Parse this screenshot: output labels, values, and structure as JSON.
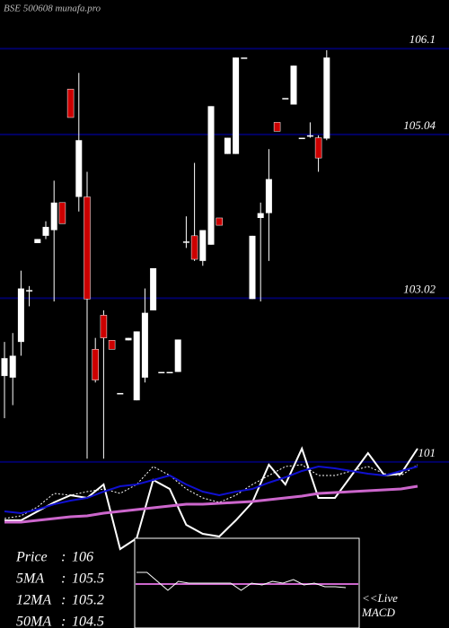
{
  "chart_data": [
    {
      "type": "candlestick",
      "title": "BSE 500608 munafa.pro",
      "ylim": [
        100.5,
        106.7
      ],
      "yticks": [
        106.1,
        105.04,
        103.02,
        101
      ],
      "grid": true,
      "up_color": "#ffffff",
      "down_color": "#cc0000",
      "grid_color": "#000066",
      "open": [
        102.06,
        102.04,
        102.48,
        103.12,
        103.7,
        103.79,
        103.86,
        104.2,
        105.6,
        104.27,
        104.27,
        102.39,
        102.81,
        102.5,
        101.85,
        102.5,
        101.76,
        102.04,
        102.87,
        102.11,
        102.11,
        102.11,
        103.72,
        103.79,
        103.48,
        103.68,
        104.01,
        104.8,
        104.8,
        105.99,
        103.01,
        104.01,
        104.07,
        105.19,
        105.49,
        105.41,
        105.0,
        105.03,
        105.0,
        104.99
      ],
      "high": [
        102.48,
        102.59,
        103.36,
        103.17,
        103.75,
        103.97,
        104.47,
        104.2,
        105.6,
        105.8,
        104.58,
        102.53,
        102.87,
        102.5,
        101.85,
        102.53,
        102.61,
        103.14,
        103.39,
        102.11,
        102.11,
        102.51,
        104.03,
        104.69,
        103.86,
        105.39,
        104.01,
        105.0,
        105.99,
        105.99,
        103.79,
        104.2,
        104.86,
        105.19,
        105.49,
        105.89,
        105.0,
        105.19,
        105.03,
        106.08
      ],
      "low": [
        101.54,
        101.7,
        102.31,
        102.92,
        103.7,
        103.75,
        102.98,
        103.94,
        105.25,
        104.09,
        101.04,
        101.98,
        101.04,
        102.39,
        101.85,
        102.5,
        101.76,
        101.98,
        102.87,
        102.11,
        102.11,
        102.11,
        103.64,
        103.48,
        103.42,
        103.68,
        103.92,
        104.8,
        104.8,
        105.99,
        103.01,
        102.98,
        103.48,
        105.08,
        105.49,
        105.41,
        105.0,
        105.0,
        104.58,
        104.97
      ],
      "close": [
        102.28,
        102.31,
        103.14,
        103.12,
        103.75,
        103.9,
        104.2,
        103.94,
        105.25,
        104.97,
        103.01,
        102.01,
        102.53,
        102.39,
        101.85,
        102.53,
        102.61,
        102.84,
        103.39,
        102.11,
        102.11,
        102.51,
        103.72,
        103.5,
        103.86,
        105.39,
        103.92,
        105.0,
        105.99,
        105.99,
        103.79,
        104.07,
        104.49,
        105.08,
        105.49,
        105.89,
        105.0,
        105.03,
        104.75,
        105.99
      ]
    },
    {
      "type": "line",
      "ylim": [
        0,
        110
      ],
      "separator": ":",
      "x": [
        0,
        2,
        4,
        6,
        8,
        10,
        12,
        14,
        16,
        18,
        20,
        22,
        24,
        26,
        28,
        30,
        32,
        34,
        36,
        38,
        40,
        42,
        44,
        46,
        48,
        50
      ],
      "series": [
        {
          "name": "Price",
          "color": "#ffffff",
          "dash": false,
          "last_value": 106,
          "values": [
            20,
            20,
            30,
            40,
            48,
            45,
            60,
            -12,
            0,
            65,
            55,
            15,
            5,
            2,
            20,
            40,
            82,
            60,
            100,
            45,
            45,
            70,
            95,
            70,
            72,
            100
          ]
        },
        {
          "name": "5MA",
          "color": "#ffffff",
          "dash": true,
          "last_value": 105.5,
          "values": [
            22,
            25,
            35,
            50,
            48,
            52,
            55,
            50,
            60,
            80,
            70,
            55,
            45,
            40,
            48,
            60,
            70,
            80,
            82,
            70,
            70,
            75,
            80,
            72,
            70,
            82
          ]
        },
        {
          "name": "12MA",
          "color": "#1010d0",
          "dash": false,
          "last_value": 105.2,
          "values": [
            30,
            28,
            32,
            38,
            42,
            45,
            52,
            58,
            60,
            65,
            70,
            60,
            52,
            48,
            52,
            55,
            62,
            68,
            75,
            80,
            78,
            75,
            72,
            70,
            75,
            80
          ]
        },
        {
          "name": "50MA",
          "color": "#cc66cc",
          "dash": false,
          "last_value": 104.5,
          "values": [
            18,
            18,
            20,
            22,
            24,
            25,
            28,
            30,
            32,
            34,
            36,
            38,
            38,
            39,
            40,
            41,
            43,
            45,
            47,
            50,
            51,
            52,
            53,
            54,
            55,
            58
          ]
        }
      ]
    },
    {
      "type": "macd",
      "annotation": [
        "<<Live",
        "MACD"
      ],
      "ylim": [
        -20,
        20
      ],
      "signal": 0,
      "signal_color": "#cc66cc",
      "color": "#ffffff",
      "values": [
        13,
        13,
        3,
        -7,
        3,
        1,
        1,
        1,
        1,
        1,
        -7,
        1,
        -1,
        3,
        1,
        5,
        -1,
        1,
        -3,
        -3,
        -4
      ]
    }
  ]
}
